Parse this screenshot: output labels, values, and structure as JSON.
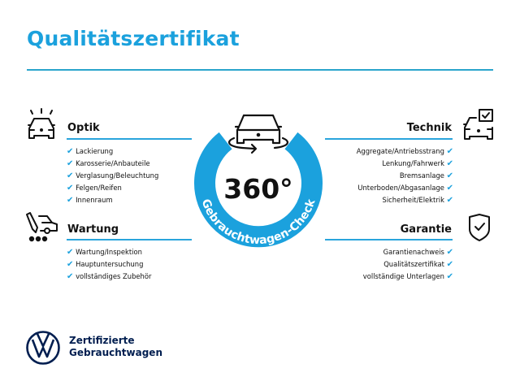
{
  "title": "Qualitätszertifikat",
  "center": {
    "value": "360°",
    "ring_text": "Gebrauchtwagen-Check"
  },
  "sections": {
    "optik": {
      "heading": "Optik",
      "icon": "car-lights-icon",
      "items": [
        "Lackierung",
        "Karosserie/Anbauteile",
        "Verglasung/Beleuchtung",
        "Felgen/Reifen",
        "Innenraum"
      ]
    },
    "wartung": {
      "heading": "Wartung",
      "icon": "car-service-tools-icon",
      "items": [
        "Wartung/Inspektion",
        "Hauptuntersuchung",
        "vollständiges Zubehör"
      ]
    },
    "technik": {
      "heading": "Technik",
      "icon": "car-checkbox-icon",
      "items": [
        "Aggregate/Antriebsstrang",
        "Lenkung/Fahrwerk",
        "Bremsanlage",
        "Unterboden/Abgasanlage",
        "Sicherheit/Elektrik"
      ]
    },
    "garantie": {
      "heading": "Garantie",
      "icon": "shield-check-icon",
      "items": [
        "Garantienachweis",
        "Qualitätszertifikat",
        "vollständige Unterlagen"
      ]
    }
  },
  "check_glyph": "✔",
  "brand": {
    "line1": "Zertifizierte",
    "line2": "Gebrauchtwagen"
  },
  "colors": {
    "accent": "#1ba1dd",
    "brand_dark": "#001e50",
    "text": "#111111"
  }
}
